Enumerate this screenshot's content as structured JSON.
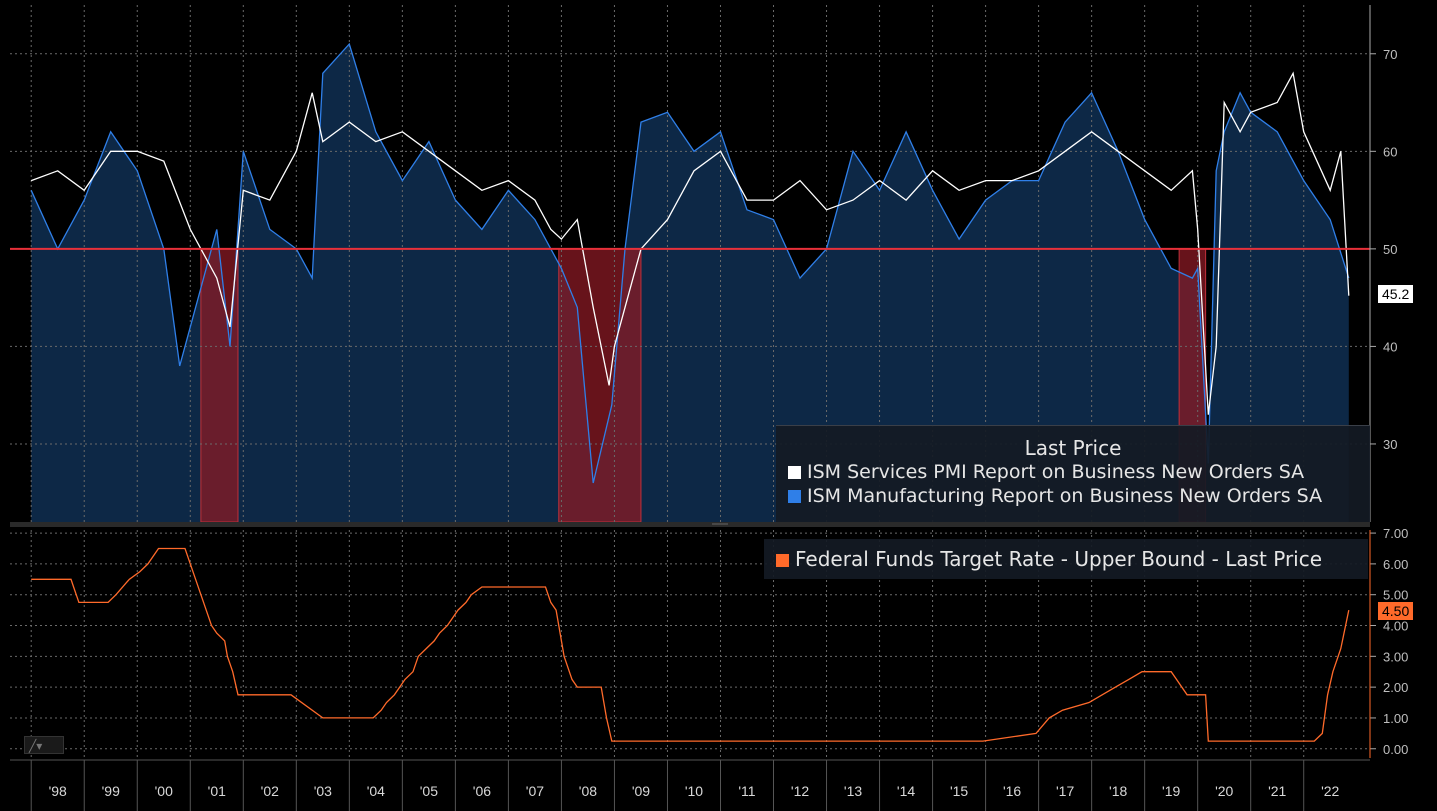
{
  "colors": {
    "services": "#ffffff",
    "manufacturing": "#2f7fe8",
    "fill": "#0e2a4a",
    "threshold": "#e8303a",
    "recession": "#8a1a24",
    "fedfunds": "#ff6a2a",
    "grid": "#6a6a6a"
  },
  "chart_data": [
    {
      "type": "line",
      "title": "",
      "legend_title": "Last Price",
      "legend_position": "bottom-right",
      "series": [
        {
          "name": "ISM Services PMI Report on Business New Orders SA",
          "color": "#ffffff",
          "x": [
            1998.0,
            1998.5,
            1999.0,
            1999.5,
            2000.0,
            2000.5,
            2001.0,
            2001.5,
            2001.75,
            2002.0,
            2002.5,
            2003.0,
            2003.3,
            2003.5,
            2004.0,
            2004.5,
            2005.0,
            2005.5,
            2006.0,
            2006.5,
            2007.0,
            2007.5,
            2007.8,
            2008.0,
            2008.3,
            2008.6,
            2008.9,
            2009.0,
            2009.2,
            2009.5,
            2010.0,
            2010.5,
            2011.0,
            2011.5,
            2012.0,
            2012.5,
            2013.0,
            2013.5,
            2014.0,
            2014.5,
            2015.0,
            2015.5,
            2016.0,
            2016.5,
            2017.0,
            2017.5,
            2018.0,
            2018.5,
            2019.0,
            2019.5,
            2019.9,
            2020.0,
            2020.2,
            2020.35,
            2020.5,
            2020.8,
            2021.0,
            2021.5,
            2021.8,
            2022.0,
            2022.5,
            2022.7,
            2022.85
          ],
          "values": [
            57,
            58,
            56,
            60,
            60,
            59,
            52,
            47,
            42,
            56,
            55,
            60,
            66,
            61,
            63,
            61,
            62,
            60,
            58,
            56,
            57,
            55,
            52,
            51,
            53,
            44,
            36,
            40,
            44,
            50,
            53,
            58,
            60,
            55,
            55,
            57,
            54,
            55,
            57,
            55,
            58,
            56,
            57,
            57,
            58,
            60,
            62,
            60,
            58,
            56,
            58,
            52,
            33,
            40,
            65,
            62,
            64,
            65,
            68,
            62,
            56,
            60,
            45.2
          ]
        },
        {
          "name": "ISM Manufacturing Report on Business New Orders SA",
          "color": "#2f7fe8",
          "x": [
            1998.0,
            1998.5,
            1999.0,
            1999.5,
            2000.0,
            2000.5,
            2000.8,
            2001.0,
            2001.5,
            2001.75,
            2002.0,
            2002.5,
            2003.0,
            2003.3,
            2003.5,
            2004.0,
            2004.5,
            2005.0,
            2005.5,
            2006.0,
            2006.5,
            2007.0,
            2007.5,
            2008.0,
            2008.3,
            2008.6,
            2008.95,
            2009.2,
            2009.5,
            2010.0,
            2010.5,
            2011.0,
            2011.5,
            2012.0,
            2012.5,
            2013.0,
            2013.5,
            2014.0,
            2014.5,
            2015.0,
            2015.5,
            2016.0,
            2016.5,
            2017.0,
            2017.5,
            2018.0,
            2018.5,
            2019.0,
            2019.5,
            2019.9,
            2020.0,
            2020.2,
            2020.35,
            2020.5,
            2020.8,
            2021.0,
            2021.5,
            2022.0,
            2022.5,
            2022.85
          ],
          "values": [
            56,
            50,
            55,
            62,
            58,
            50,
            38,
            42,
            52,
            40,
            60,
            52,
            50,
            47,
            68,
            71,
            62,
            57,
            61,
            55,
            52,
            56,
            53,
            48,
            44,
            26,
            34,
            50,
            63,
            64,
            60,
            62,
            54,
            53,
            47,
            50,
            60,
            56,
            62,
            56,
            51,
            55,
            57,
            57,
            63,
            66,
            60,
            53,
            48,
            47,
            48,
            28,
            58,
            62,
            66,
            64,
            62,
            57,
            53,
            47
          ]
        }
      ],
      "reference_line": 50,
      "recession_bands": [
        [
          2001.2,
          2001.9
        ],
        [
          2007.95,
          2009.5
        ],
        [
          2019.65,
          2020.15
        ]
      ],
      "ylim": [
        22,
        75
      ],
      "y_ticks": [
        "30",
        "40",
        "50",
        "60",
        "70"
      ],
      "last_value_label": "45.2"
    },
    {
      "type": "line",
      "title": "",
      "legend_position": "top-right",
      "series": [
        {
          "name": "Federal Funds Target Rate - Upper Bound - Last Price",
          "color": "#ff6a2a",
          "x": [
            1998.0,
            1998.75,
            1998.8,
            1998.9,
            1999.45,
            1999.6,
            1999.85,
            2000.05,
            2000.2,
            2000.4,
            2000.5,
            2000.9,
            2001.0,
            2001.1,
            2001.2,
            2001.3,
            2001.4,
            2001.5,
            2001.65,
            2001.7,
            2001.8,
            2001.9,
            2002.9,
            2003.5,
            2004.45,
            2004.6,
            2004.7,
            2004.85,
            2004.95,
            2005.05,
            2005.2,
            2005.3,
            2005.45,
            2005.6,
            2005.7,
            2005.85,
            2005.95,
            2006.05,
            2006.2,
            2006.3,
            2006.5,
            2007.7,
            2007.8,
            2007.9,
            2008.05,
            2008.2,
            2008.3,
            2008.75,
            2008.85,
            2008.95,
            2015.95,
            2016.95,
            2017.2,
            2017.45,
            2017.95,
            2018.2,
            2018.45,
            2018.7,
            2018.95,
            2019.5,
            2019.6,
            2019.8,
            2020.15,
            2020.2,
            2022.2,
            2022.35,
            2022.45,
            2022.55,
            2022.7,
            2022.85
          ],
          "values": [
            5.5,
            5.5,
            5.25,
            4.75,
            4.75,
            5.0,
            5.5,
            5.75,
            6.0,
            6.5,
            6.5,
            6.5,
            6.0,
            5.5,
            5.0,
            4.5,
            4.0,
            3.75,
            3.5,
            3.0,
            2.5,
            1.75,
            1.75,
            1.0,
            1.0,
            1.25,
            1.5,
            1.75,
            2.0,
            2.25,
            2.5,
            3.0,
            3.25,
            3.5,
            3.75,
            4.0,
            4.25,
            4.5,
            4.75,
            5.0,
            5.25,
            5.25,
            4.75,
            4.5,
            3.0,
            2.25,
            2.0,
            2.0,
            1.0,
            0.25,
            0.25,
            0.5,
            1.0,
            1.25,
            1.5,
            1.75,
            2.0,
            2.25,
            2.5,
            2.5,
            2.25,
            1.75,
            1.75,
            0.25,
            0.25,
            0.5,
            1.75,
            2.5,
            3.25,
            4.5
          ]
        }
      ],
      "ylim": [
        -0.3,
        7.1
      ],
      "y_ticks": [
        "0.00",
        "1.00",
        "2.00",
        "3.00",
        "4.00",
        "5.00",
        "6.00",
        "7.00"
      ],
      "last_value_label": "4.50"
    }
  ],
  "x_axis": {
    "range": [
      1997.6,
      2023.25
    ],
    "labels": [
      "'98",
      "'99",
      "'00",
      "'01",
      "'02",
      "'03",
      "'04",
      "'05",
      "'06",
      "'07",
      "'08",
      "'09",
      "'10",
      "'11",
      "'12",
      "'13",
      "'14",
      "'15",
      "'16",
      "'17",
      "'18",
      "'19",
      "'20",
      "'21",
      "'22"
    ]
  },
  "toolbar": {
    "chart_type_icon": "line-chart-icon"
  }
}
